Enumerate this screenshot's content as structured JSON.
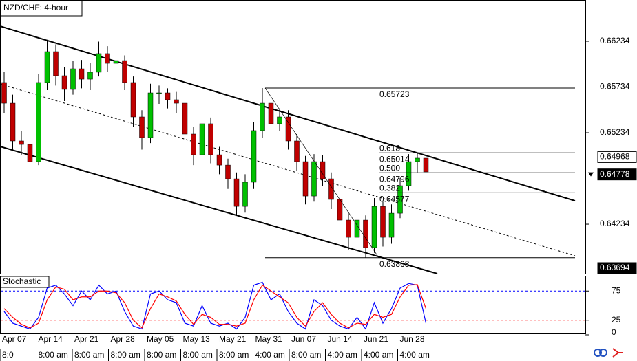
{
  "chart_data": [
    {
      "type": "candlestick",
      "title": "NZD/CHF: 4-hour",
      "open": [
        0.65783,
        0.65557,
        0.65144,
        0.65106,
        0.64918,
        0.65783,
        0.66121,
        0.65858,
        0.65708,
        0.65933,
        0.6582,
        0.65896,
        0.66099,
        0.65993,
        0.66023,
        0.65783,
        0.65407,
        0.65181,
        0.6567,
        0.6567,
        0.65595,
        0.65557,
        0.65219,
        0.64993,
        0.65332,
        0.64993,
        0.6488,
        0.6473,
        0.64429,
        0.64693,
        0.65257,
        0.65557,
        0.65332,
        0.65407,
        0.65144,
        0.64918,
        0.64542,
        0.64918,
        0.6473,
        0.64505,
        0.64279,
        0.64091,
        0.64279,
        0.63978,
        0.64429,
        0.64091,
        0.64354,
        0.64655,
        0.64918,
        0.64956
      ],
      "high": [
        0.659,
        0.6565,
        0.6525,
        0.652,
        0.6588,
        0.6625,
        0.662,
        0.6595,
        0.6602,
        0.6603,
        0.66,
        0.6623,
        0.6618,
        0.6612,
        0.6608,
        0.6585,
        0.6548,
        0.6577,
        0.6575,
        0.6572,
        0.6568,
        0.6562,
        0.653,
        0.6542,
        0.654,
        0.6508,
        0.6495,
        0.648,
        0.6478,
        0.6535,
        0.65723,
        0.6562,
        0.655,
        0.6548,
        0.6522,
        0.6498,
        0.65,
        0.6499,
        0.648,
        0.6458,
        0.6435,
        0.6438,
        0.6433,
        0.6452,
        0.6448,
        0.6445,
        0.6474,
        0.65,
        0.65014,
        0.6499
      ],
      "low": [
        0.6545,
        0.6505,
        0.6499,
        0.648,
        0.6488,
        0.657,
        0.6575,
        0.6558,
        0.6565,
        0.6572,
        0.657,
        0.6585,
        0.659,
        0.659,
        0.657,
        0.653,
        0.6505,
        0.6512,
        0.6555,
        0.655,
        0.6545,
        0.651,
        0.6488,
        0.6492,
        0.649,
        0.6478,
        0.6462,
        0.6433,
        0.6436,
        0.6462,
        0.6518,
        0.6525,
        0.6525,
        0.6505,
        0.6482,
        0.6445,
        0.6448,
        0.6465,
        0.644,
        0.6415,
        0.6395,
        0.64,
        0.63868,
        0.6392,
        0.6399,
        0.6402,
        0.643,
        0.646,
        0.648,
        0.6474
      ],
      "close": [
        0.65557,
        0.65144,
        0.65106,
        0.64918,
        0.65783,
        0.66121,
        0.65858,
        0.65708,
        0.65933,
        0.6582,
        0.65896,
        0.66099,
        0.65993,
        0.66023,
        0.65783,
        0.65407,
        0.65181,
        0.6567,
        0.6567,
        0.65595,
        0.65557,
        0.65219,
        0.64993,
        0.65332,
        0.64993,
        0.6488,
        0.6473,
        0.64429,
        0.64693,
        0.65257,
        0.65557,
        0.65332,
        0.65407,
        0.65144,
        0.64918,
        0.64542,
        0.64918,
        0.6473,
        0.64505,
        0.64279,
        0.64091,
        0.64279,
        0.63978,
        0.64429,
        0.64091,
        0.64354,
        0.64655,
        0.64918,
        0.64956,
        0.64806
      ],
      "up_color": "#00c000",
      "down_color": "#c00000",
      "ylim": [
        0.63693,
        0.66685
      ],
      "yticks": [
        0.66234,
        0.65734,
        0.65234,
        0.64234
      ],
      "price_markers": [
        0.64968,
        0.64778,
        0.63694
      ],
      "fib_levels": [
        {
          "price": 0.65723
        },
        {
          "ratio": "0.618",
          "price": 0.65014
        },
        {
          "ratio": "0.500",
          "price": 0.64796
        },
        {
          "ratio": "0.382",
          "price": 0.64577
        },
        {
          "price": 0.63868
        }
      ],
      "date_labels": [
        "Apr 07",
        "Apr 14",
        "Apr 21",
        "Apr 28",
        "May 05",
        "May 13",
        "May 21",
        "May 31",
        "Jun 07",
        "Jun 14",
        "Jun 21",
        "Jun 28"
      ],
      "time_labels": [
        "8:0",
        "8:00 am",
        "8:00 am",
        "8:00 am",
        "8:00 am",
        "8:00 am",
        "8:00 am",
        "4:00 am",
        "8:00 am",
        "4:00 am",
        "4:00 am",
        "4:00 am"
      ]
    },
    {
      "type": "line",
      "title": "Stochastic",
      "series": [
        {
          "color": "#0000ff",
          "values": [
            40,
            20,
            15,
            10,
            30,
            80,
            85,
            70,
            50,
            75,
            60,
            85,
            70,
            75,
            40,
            15,
            10,
            70,
            75,
            60,
            55,
            20,
            15,
            50,
            20,
            15,
            20,
            10,
            30,
            85,
            90,
            60,
            70,
            40,
            20,
            10,
            60,
            50,
            25,
            15,
            10,
            30,
            10,
            55,
            20,
            45,
            80,
            88,
            85,
            20
          ]
        },
        {
          "color": "#ff0000",
          "values": [
            45,
            30,
            18,
            12,
            20,
            60,
            82,
            78,
            60,
            65,
            65,
            75,
            75,
            72,
            55,
            25,
            12,
            45,
            70,
            65,
            58,
            35,
            18,
            35,
            30,
            18,
            18,
            15,
            20,
            60,
            85,
            75,
            65,
            55,
            30,
            15,
            40,
            55,
            35,
            20,
            12,
            20,
            18,
            35,
            30,
            35,
            65,
            85,
            86,
            45
          ]
        }
      ],
      "ylim": [
        0,
        100
      ],
      "yticks": [
        75,
        25,
        0
      ],
      "levels": [
        {
          "value": 75,
          "color": "#0000ff"
        },
        {
          "value": 25,
          "color": "#ff0000"
        }
      ]
    }
  ]
}
